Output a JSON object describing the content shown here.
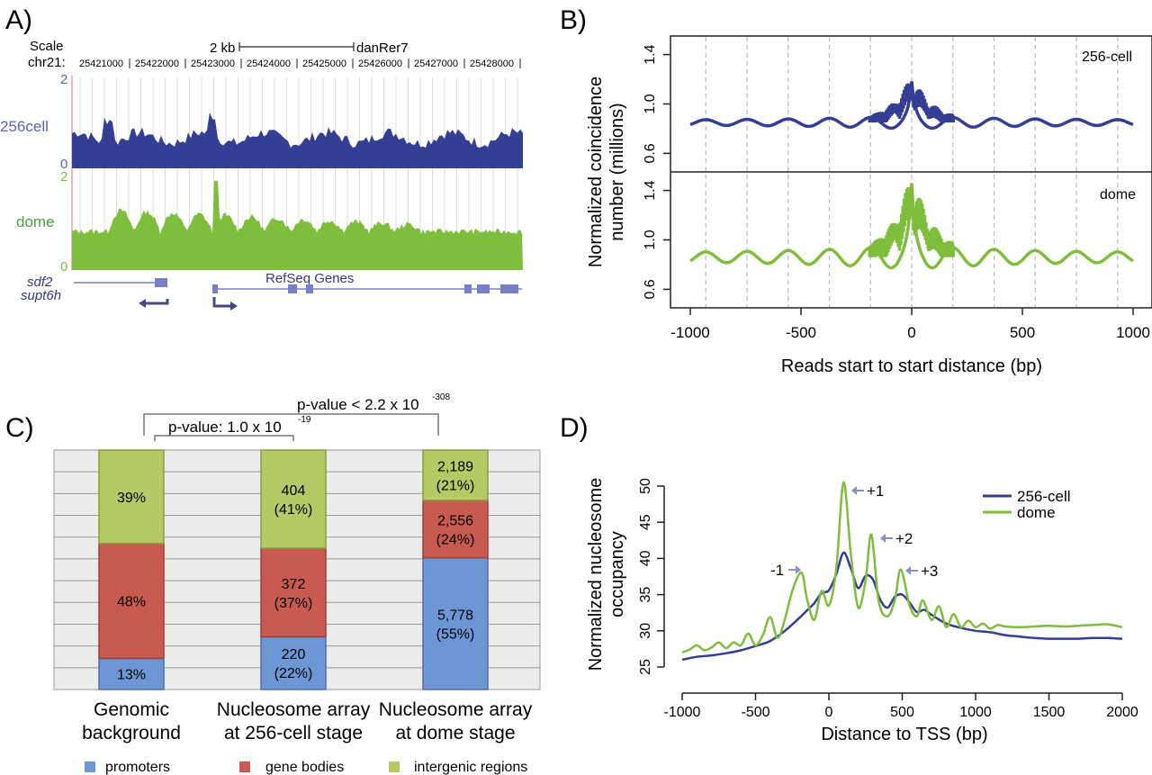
{
  "colors": {
    "blue": "#343e93",
    "green": "#7fbe3c",
    "bar_blue": "#6c97d4",
    "bar_red": "#c85a50",
    "bar_green": "#b5c964",
    "arrow": "#8b8fc4",
    "grid": "#bbbbbb",
    "panelA_blue_label": "#5a63b4"
  },
  "panel_labels": {
    "a": "A)",
    "b": "B)",
    "c": "C)",
    "d": "D)"
  },
  "chart_data": [
    {
      "id": "A",
      "type": "area",
      "scale_label": "Scale",
      "chrom_label": "chr21:",
      "scale_bar": "2 kb",
      "assembly": "danRer7",
      "ticks": [
        "25421000",
        "25422000",
        "25423000",
        "25424000",
        "25425000",
        "25426000",
        "25427000",
        "25428000"
      ],
      "tracks": [
        {
          "name": "256cell",
          "ymin": "0",
          "ymax": "2"
        },
        {
          "name": "dome",
          "ymin": "0",
          "ymax": "2"
        }
      ],
      "genes": [
        "sdf2",
        "supt6h"
      ],
      "gene_track_label": "RefSeq Genes"
    },
    {
      "id": "B",
      "type": "line",
      "xlabel": "Reads start to start distance (bp)",
      "ylabel_lines": [
        "Normalized coincidence",
        "number (millions)"
      ],
      "xlim": [
        -1000,
        1000
      ],
      "xticks": [
        "-1000",
        "-500",
        "0",
        "500",
        "1000"
      ],
      "ylim": [
        0.45,
        1.55
      ],
      "yticks": [
        "0.6",
        "1.0",
        "1.4"
      ],
      "period_bp": 186,
      "series": [
        {
          "name": "256-cell",
          "baseline": 0.85,
          "center_peak": 1.18,
          "oscillation_amplitude": 0.035
        },
        {
          "name": "dome",
          "baseline": 0.86,
          "center_peak": 1.45,
          "oscillation_amplitude": 0.065
        }
      ]
    },
    {
      "id": "C",
      "type": "bar",
      "stacked": true,
      "categories": [
        [
          "Genomic",
          "background"
        ],
        [
          "Nucleosome array",
          "at 256-cell stage"
        ],
        [
          "Nucleosome array",
          "at dome stage"
        ]
      ],
      "series": [
        {
          "name": "promoters",
          "values": [
            13,
            22,
            55
          ],
          "labels": [
            [
              "13%"
            ],
            [
              "220",
              "(22%)"
            ],
            [
              "5,778",
              "(55%)"
            ]
          ]
        },
        {
          "name": "gene bodies",
          "values": [
            48,
            37,
            24
          ],
          "labels": [
            [
              "48%"
            ],
            [
              "372",
              "(37%)"
            ],
            [
              "2,556",
              "(24%)"
            ]
          ]
        },
        {
          "name": "intergenic regions",
          "values": [
            39,
            41,
            21
          ],
          "labels": [
            [
              "39%"
            ],
            [
              "404",
              "(41%)"
            ],
            [
              "2,189",
              "(21%)"
            ]
          ]
        }
      ],
      "pvalues": [
        {
          "from": 0,
          "to": 1,
          "base": "p-value: 1.0 x 10",
          "exp": "-19"
        },
        {
          "from": 0,
          "to": 2,
          "base": "p-value < 2.2 x 10",
          "exp": "-308"
        }
      ],
      "legend": [
        "promoters",
        "gene bodies",
        "intergenic regions"
      ]
    },
    {
      "id": "D",
      "type": "line",
      "xlabel": "Distance to TSS (bp)",
      "ylabel_lines": [
        "Normalized nucleosome",
        "occupancy"
      ],
      "xlim": [
        -1000,
        2000
      ],
      "xticks": [
        -1000,
        -500,
        0,
        500,
        1000,
        1500,
        2000
      ],
      "ylim": [
        25,
        51
      ],
      "yticks": [
        25,
        30,
        35,
        40,
        45,
        50
      ],
      "series": [
        {
          "name": "256-cell",
          "x": [
            -1000,
            -900,
            -800,
            -700,
            -600,
            -500,
            -400,
            -300,
            -200,
            -150,
            -100,
            -50,
            0,
            50,
            100,
            150,
            200,
            250,
            300,
            350,
            400,
            450,
            500,
            550,
            600,
            650,
            700,
            800,
            900,
            1000,
            1100,
            1200,
            1300,
            1400,
            1500,
            1600,
            1700,
            1800,
            1900,
            2000
          ],
          "y": [
            26.0,
            26.4,
            26.6,
            26.9,
            27.3,
            27.9,
            28.6,
            30.0,
            31.8,
            32.8,
            33.8,
            35.2,
            35.6,
            37.8,
            40.8,
            38.6,
            35.9,
            37.6,
            37.1,
            34.3,
            33.2,
            34.7,
            35.0,
            33.9,
            32.6,
            32.9,
            32.2,
            31.0,
            30.4,
            30.0,
            29.8,
            29.4,
            29.2,
            29.0,
            28.9,
            28.9,
            28.9,
            29.0,
            29.0,
            28.9
          ]
        },
        {
          "name": "dome",
          "x": [
            -1000,
            -950,
            -900,
            -850,
            -800,
            -750,
            -700,
            -650,
            -600,
            -550,
            -500,
            -450,
            -400,
            -350,
            -300,
            -250,
            -200,
            -175,
            -150,
            -100,
            -50,
            0,
            50,
            100,
            150,
            200,
            250,
            290,
            340,
            400,
            450,
            490,
            550,
            600,
            640,
            700,
            750,
            800,
            850,
            900,
            950,
            1000,
            1050,
            1100,
            1150,
            1200,
            1300,
            1400,
            1500,
            1600,
            1700,
            1800,
            1900,
            2000
          ],
          "y": [
            27.0,
            27.4,
            28.0,
            27.3,
            27.7,
            28.4,
            27.6,
            28.4,
            28.0,
            29.6,
            28.0,
            29.4,
            31.9,
            29.0,
            31.6,
            35.5,
            37.9,
            37.5,
            34.5,
            31.5,
            35.5,
            33.5,
            38.5,
            50.5,
            40.5,
            33.2,
            37.0,
            43.3,
            34.0,
            32.0,
            34.3,
            38.5,
            33.5,
            32.0,
            34.2,
            31.5,
            33.4,
            30.5,
            32.3,
            30.5,
            31.4,
            30.5,
            31.0,
            30.3,
            30.8,
            30.6,
            30.5,
            30.6,
            30.7,
            30.6,
            30.7,
            30.8,
            30.9,
            30.5
          ]
        }
      ],
      "annotations": [
        "-1",
        "+1",
        "+2",
        "+3"
      ]
    }
  ]
}
